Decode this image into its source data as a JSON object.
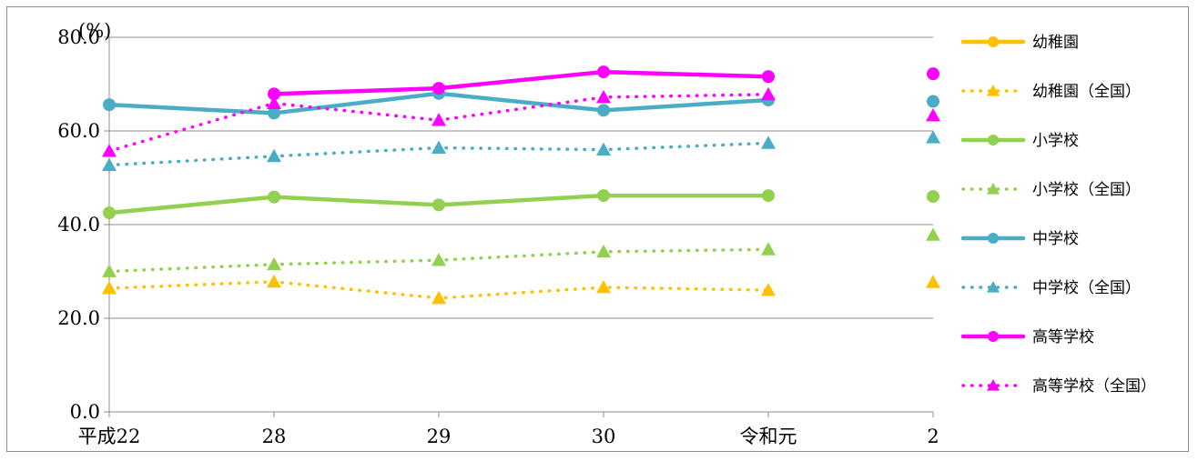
{
  "chart_data": {
    "type": "line",
    "title": "",
    "ylabel": "(%)",
    "xlabel": "",
    "ylim": [
      0,
      80
    ],
    "yticks": [
      "0.0",
      "20.0",
      "40.0",
      "60.0",
      "80.0"
    ],
    "categories": [
      "平成22",
      "28",
      "29",
      "30",
      "令和元",
      "2"
    ],
    "grid": true,
    "legend_position": "right",
    "series": [
      {
        "name": "幼稚園",
        "color": "#ffc000",
        "style": "solid",
        "marker": "circle",
        "values": [
          null,
          null,
          null,
          null,
          null,
          null
        ]
      },
      {
        "name": "幼稚園（全国）",
        "color": "#ffc000",
        "style": "dotted",
        "marker": "triangle",
        "values": [
          26.4,
          27.8,
          24.3,
          26.6,
          26.0,
          27.7
        ]
      },
      {
        "name": "小学校",
        "color": "#92d050",
        "style": "solid",
        "marker": "circle",
        "values": [
          42.5,
          45.9,
          44.2,
          46.2,
          46.2,
          46.0
        ]
      },
      {
        "name": "小学校（全国）",
        "color": "#92d050",
        "style": "dotted",
        "marker": "triangle",
        "values": [
          30.0,
          31.5,
          32.4,
          34.2,
          34.7,
          37.8
        ]
      },
      {
        "name": "中学校",
        "color": "#4bacc6",
        "style": "solid",
        "marker": "circle",
        "values": [
          65.6,
          63.8,
          68.0,
          64.4,
          66.6,
          66.3
        ]
      },
      {
        "name": "中学校（全国）",
        "color": "#4bacc6",
        "style": "dotted",
        "marker": "triangle",
        "values": [
          52.7,
          54.6,
          56.4,
          56.0,
          57.4,
          58.6
        ]
      },
      {
        "name": "高等学校",
        "color": "#ff00ff",
        "style": "solid",
        "marker": "circle",
        "values": [
          null,
          67.9,
          69.1,
          72.6,
          71.6,
          72.2
        ]
      },
      {
        "name": "高等学校（全国）",
        "color": "#ff00ff",
        "style": "dotted",
        "marker": "triangle",
        "values": [
          55.7,
          65.9,
          62.3,
          67.2,
          67.8,
          63.3
        ]
      }
    ]
  }
}
